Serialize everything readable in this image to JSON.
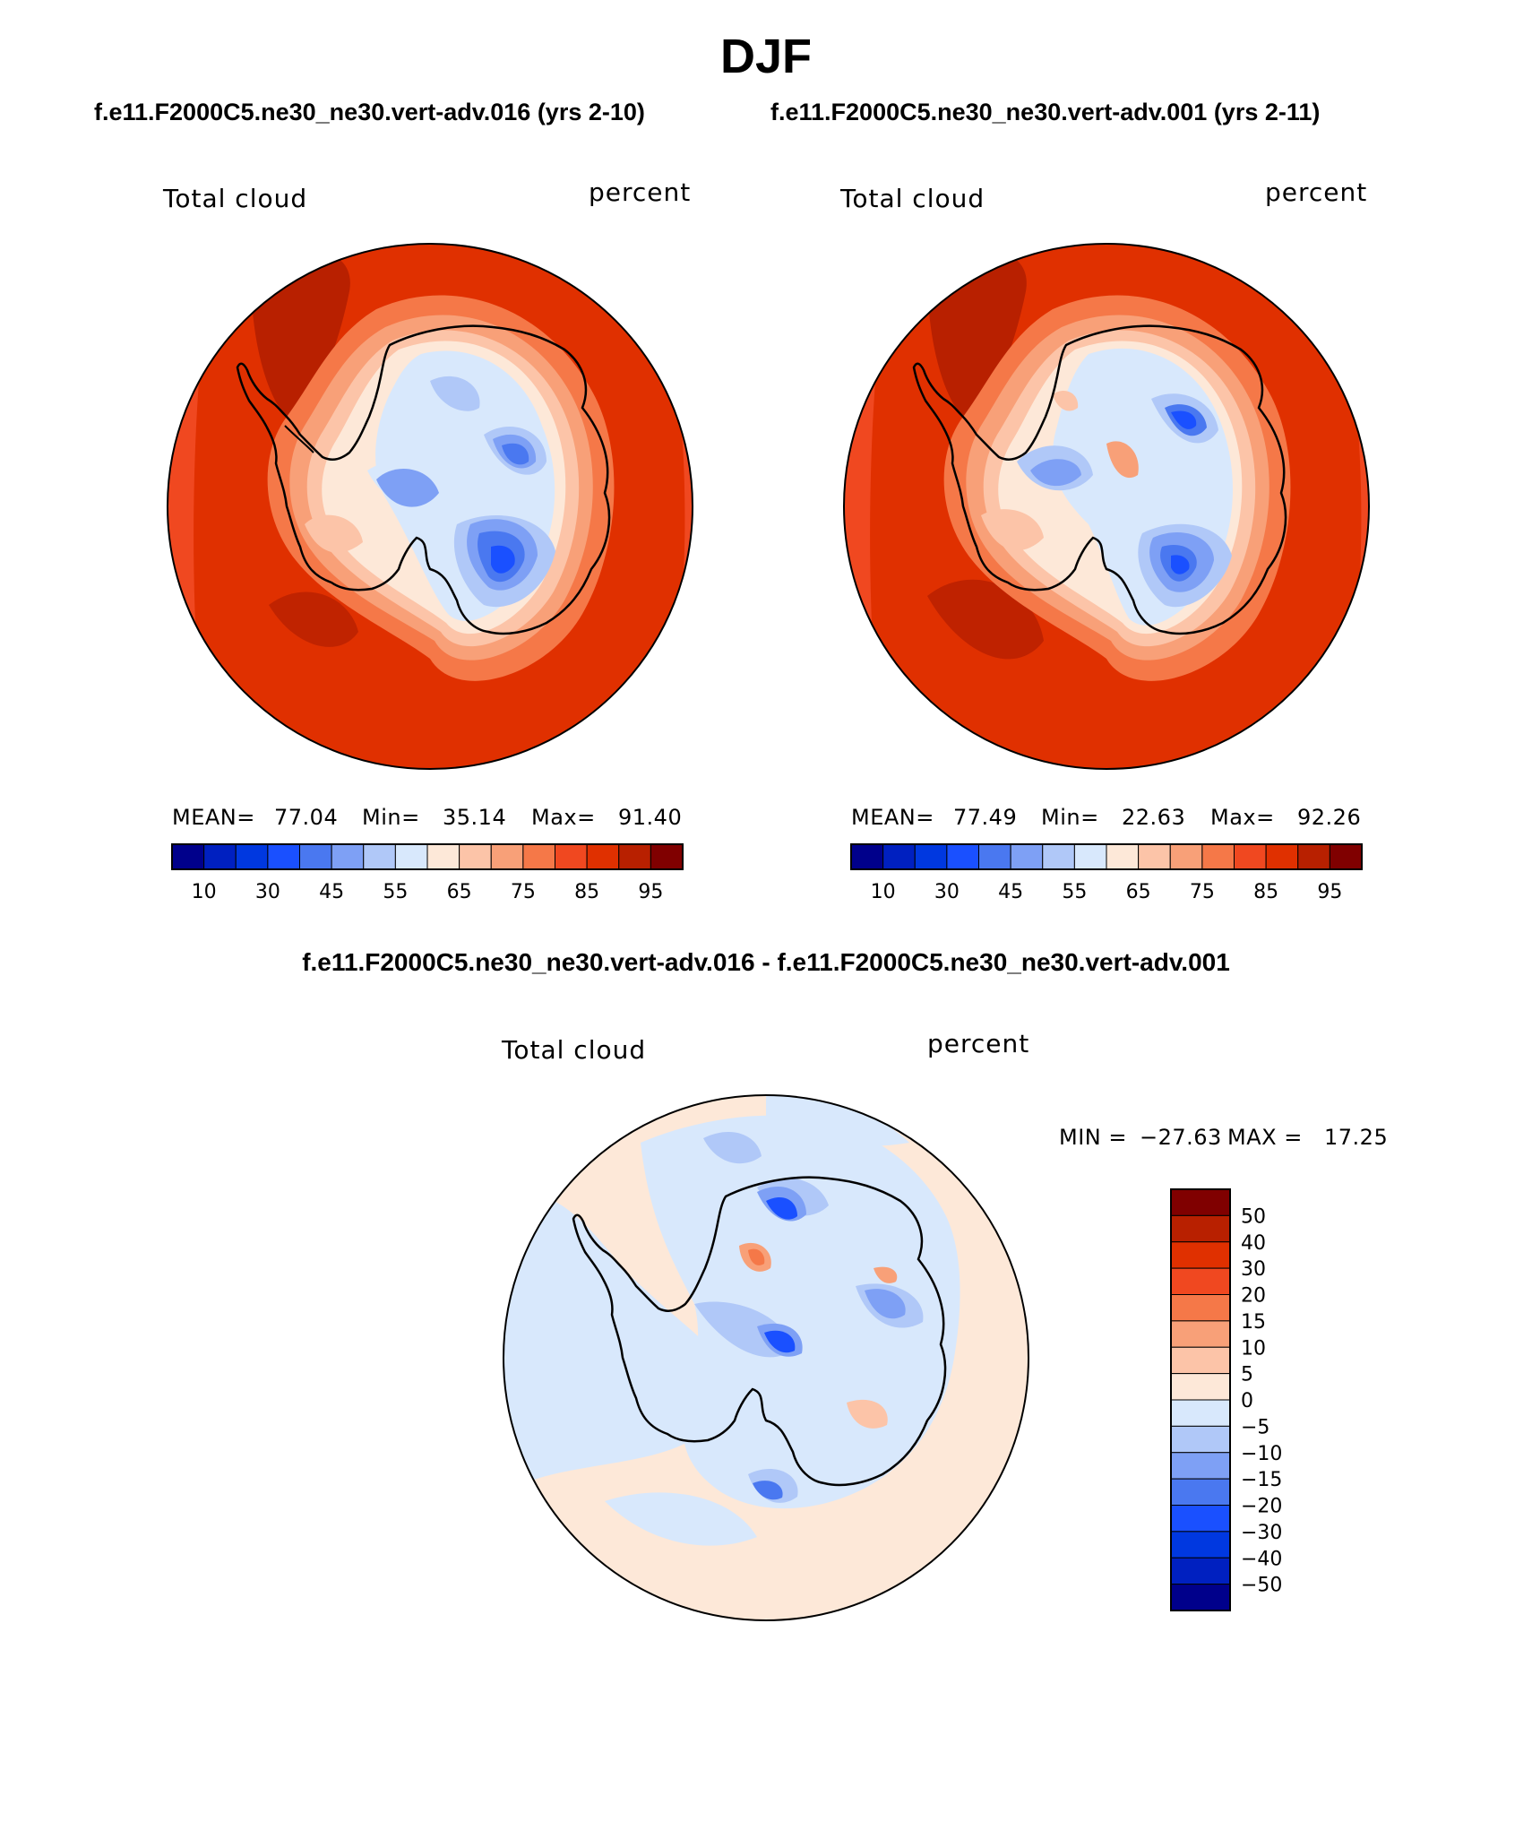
{
  "page": {
    "title": "DJF",
    "left_title": "f.e11.F2000C5.ne30_ne30.vert-adv.016 (yrs 2-10)",
    "right_title": "f.e11.F2000C5.ne30_ne30.vert-adv.001 (yrs 2-11)",
    "diff_title": "f.e11.F2000C5.ne30_ne30.vert-adv.016 - f.e11.F2000C5.ne30_ne30.vert-adv.001"
  },
  "chart_data": [
    {
      "type": "heatmap",
      "projection": "south polar stereographic",
      "variable_label": "Total cloud",
      "units_label": "percent",
      "stats": {
        "mean_label": "MEAN=",
        "mean": "77.04",
        "min_label": "Min=",
        "min": "35.14",
        "max_label": "Max=",
        "max": "91.40"
      },
      "colorbar": {
        "orientation": "horizontal",
        "colors": [
          "#00008b",
          "#0020c0",
          "#0038e0",
          "#1a50ff",
          "#4a78f0",
          "#7ea0f5",
          "#b0c8f8",
          "#d8e8fc",
          "#fde8d8",
          "#fcc4a8",
          "#f8a078",
          "#f57848",
          "#f04820",
          "#e03000",
          "#b82000",
          "#800000"
        ],
        "tick_labels": [
          "10",
          "30",
          "45",
          "55",
          "65",
          "75",
          "85",
          "95"
        ]
      }
    },
    {
      "type": "heatmap",
      "projection": "south polar stereographic",
      "variable_label": "Total cloud",
      "units_label": "percent",
      "stats": {
        "mean_label": "MEAN=",
        "mean": "77.49",
        "min_label": "Min=",
        "min": "22.63",
        "max_label": "Max=",
        "max": "92.26"
      },
      "colorbar": {
        "orientation": "horizontal",
        "colors": [
          "#00008b",
          "#0020c0",
          "#0038e0",
          "#1a50ff",
          "#4a78f0",
          "#7ea0f5",
          "#b0c8f8",
          "#d8e8fc",
          "#fde8d8",
          "#fcc4a8",
          "#f8a078",
          "#f57848",
          "#f04820",
          "#e03000",
          "#b82000",
          "#800000"
        ],
        "tick_labels": [
          "10",
          "30",
          "45",
          "55",
          "65",
          "75",
          "85",
          "95"
        ]
      }
    },
    {
      "type": "heatmap",
      "projection": "south polar stereographic",
      "variable_label": "Total cloud",
      "units_label": "percent",
      "stats": {
        "min_label": "MIN =",
        "min": "−27.63",
        "max_label": "MAX =",
        "max": "17.25"
      },
      "colorbar": {
        "orientation": "vertical",
        "colors": [
          "#800000",
          "#b82000",
          "#e03000",
          "#f04820",
          "#f57848",
          "#f8a078",
          "#fcc4a8",
          "#fde8d8",
          "#d8e8fc",
          "#b0c8f8",
          "#7ea0f5",
          "#4a78f0",
          "#1a50ff",
          "#0038e0",
          "#0020c0",
          "#00008b"
        ],
        "tick_labels": [
          "50",
          "40",
          "30",
          "20",
          "15",
          "10",
          "5",
          "0",
          "−5",
          "−10",
          "−15",
          "−20",
          "−30",
          "−40",
          "−50"
        ]
      }
    }
  ]
}
